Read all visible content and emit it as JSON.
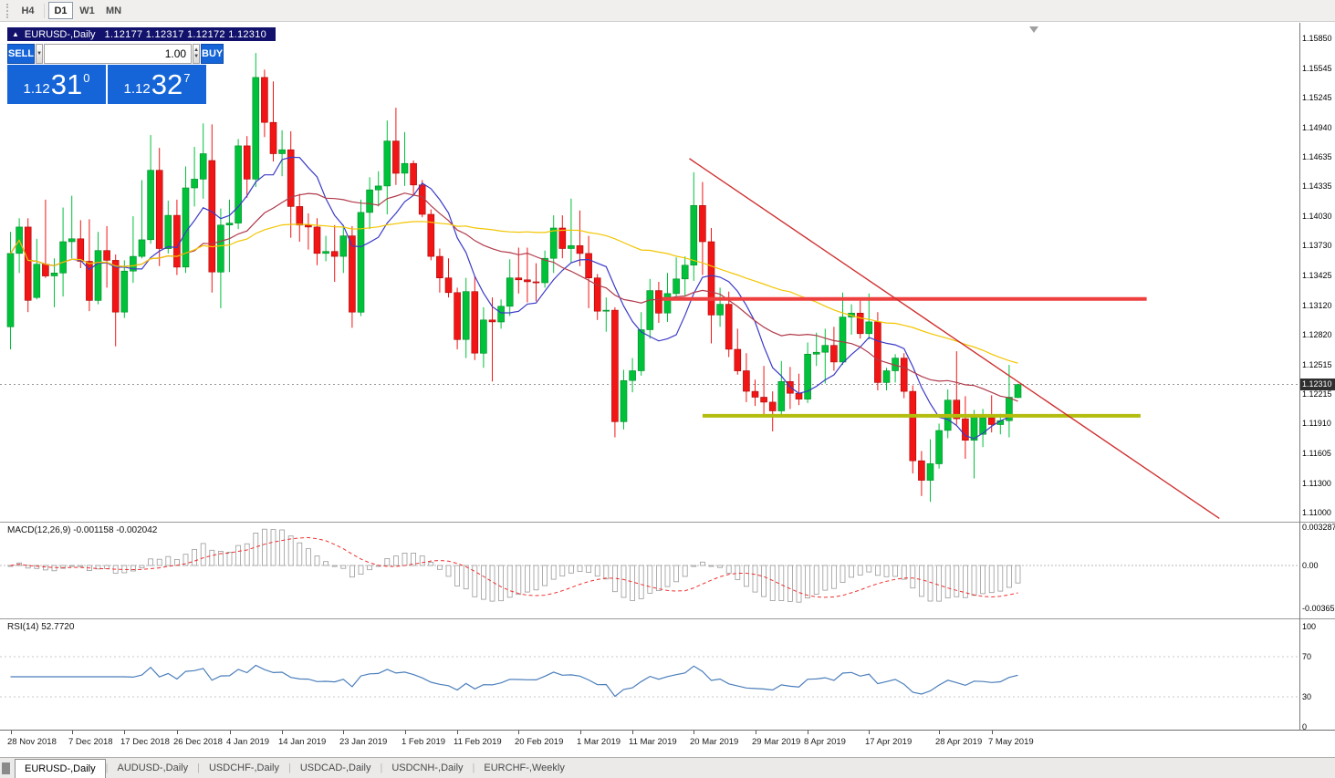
{
  "toolbar": {
    "timeframes": [
      {
        "label": "H4",
        "active": false
      },
      {
        "label": "D1",
        "active": true
      },
      {
        "label": "W1",
        "active": false
      },
      {
        "label": "MN",
        "active": false
      }
    ]
  },
  "chart": {
    "symbol_bar": {
      "collapse_icon": "▲",
      "title": "EURUSD-,Daily",
      "ohlc": "1.12177 1.12317 1.12172 1.12310"
    },
    "trade_panel": {
      "sell_label": "SELL",
      "buy_label": "BUY",
      "volume": "1.00",
      "dropdown_icon": "▼",
      "spin_up_icon": "▲",
      "spin_down_icon": "▼",
      "bid": {
        "prefix": "1.12",
        "big": "31",
        "sup": "0"
      },
      "ask": {
        "prefix": "1.12",
        "big": "32",
        "sup": "7"
      }
    },
    "price_scale": [
      "1.15850",
      "1.15545",
      "1.15245",
      "1.14940",
      "1.14635",
      "1.14335",
      "1.14030",
      "1.13730",
      "1.13425",
      "1.13120",
      "1.12820",
      "1.12515",
      "1.12215",
      "1.11910",
      "1.11605",
      "1.11300",
      "1.11000"
    ],
    "current_price": "1.12310"
  },
  "macd": {
    "label": "MACD(12,26,9) -0.001158 -0.002042",
    "scale": [
      {
        "label": "0.003287",
        "value": 0.003287
      },
      {
        "label": "0.00",
        "value": 0
      },
      {
        "label": "-0.003659",
        "value": -0.003659
      }
    ]
  },
  "rsi": {
    "label": "RSI(14) 52.7720",
    "scale": [
      {
        "label": "100",
        "value": 100
      },
      {
        "label": "70",
        "value": 70
      },
      {
        "label": "30",
        "value": 30
      },
      {
        "label": "0",
        "value": 0
      }
    ]
  },
  "time_axis": [
    {
      "label": "28 Nov 2018",
      "i": 0
    },
    {
      "label": "7 Dec 2018",
      "i": 7
    },
    {
      "label": "17 Dec 2018",
      "i": 13
    },
    {
      "label": "26 Dec 2018",
      "i": 19
    },
    {
      "label": "4 Jan 2019",
      "i": 25
    },
    {
      "label": "14 Jan 2019",
      "i": 31
    },
    {
      "label": "23 Jan 2019",
      "i": 38
    },
    {
      "label": "1 Feb 2019",
      "i": 45
    },
    {
      "label": "11 Feb 2019",
      "i": 51
    },
    {
      "label": "20 Feb 2019",
      "i": 58
    },
    {
      "label": "1 Mar 2019",
      "i": 65
    },
    {
      "label": "11 Mar 2019",
      "i": 71
    },
    {
      "label": "20 Mar 2019",
      "i": 78
    },
    {
      "label": "29 Mar 2019",
      "i": 85
    },
    {
      "label": "8 Apr 2019",
      "i": 91
    },
    {
      "label": "17 Apr 2019",
      "i": 98
    },
    {
      "label": "28 Apr 2019",
      "i": 106
    },
    {
      "label": "7 May 2019",
      "i": 112
    }
  ],
  "tabs": [
    {
      "label": "EURUSD-,Daily",
      "active": true
    },
    {
      "label": "AUDUSD-,Daily",
      "active": false
    },
    {
      "label": "USDCHF-,Daily",
      "active": false
    },
    {
      "label": "USDCAD-,Daily",
      "active": false
    },
    {
      "label": "USDCNH-,Daily",
      "active": false
    },
    {
      "label": "EURCHF-,Weekly",
      "active": false
    }
  ],
  "chart_data": {
    "type": "candlestick",
    "symbol": "EURUSD-",
    "timeframe": "Daily",
    "price_range": {
      "max": 1.1585,
      "min": 1.11
    },
    "style": {
      "up_color": "#00c23a",
      "up_border": "#008a28",
      "down_color": "#f21515",
      "down_border": "#a80808",
      "ma_fast_color": "#3a3ac8",
      "ma_mid_color": "#b03a4a",
      "ma_slow_color": "#f2c500",
      "macd_bar_stroke": "#9a9a9a",
      "macd_signal_color": "#f03030",
      "rsi_color": "#4a7ebb"
    },
    "indicators": {
      "ma_fast_period": 8,
      "ma_mid_period": 20,
      "ma_slow_period": 50,
      "macd": {
        "fast": 12,
        "slow": 26,
        "signal": 9
      },
      "rsi_period": 14
    },
    "annotations": {
      "resistance": {
        "price": 1.13185,
        "from": 74.4,
        "to": 129.7,
        "color": "#ef4040"
      },
      "support": {
        "price": 1.1199,
        "from": 79,
        "to": 129,
        "color": "#b2bd0e"
      },
      "trendline": {
        "from": {
          "i": 77.5,
          "price": 1.1462
        },
        "to": {
          "i": 138,
          "price": 1.1094
        },
        "color": "#d03030"
      },
      "current_price_line": 1.1231
    },
    "candles": [
      [
        1.129,
        1.1387,
        1.1267,
        1.1365
      ],
      [
        1.1365,
        1.1401,
        1.1345,
        1.1392
      ],
      [
        1.1392,
        1.1401,
        1.1305,
        1.1317
      ],
      [
        1.132,
        1.138,
        1.1318,
        1.1354
      ],
      [
        1.1354,
        1.142,
        1.134,
        1.1342
      ],
      [
        1.1342,
        1.136,
        1.131,
        1.1345
      ],
      [
        1.1345,
        1.1412,
        1.1321,
        1.1377
      ],
      [
        1.1377,
        1.1424,
        1.136,
        1.138
      ],
      [
        1.138,
        1.1399,
        1.135,
        1.1357
      ],
      [
        1.1357,
        1.14,
        1.1306,
        1.1317
      ],
      [
        1.1317,
        1.1387,
        1.1313,
        1.1368
      ],
      [
        1.1368,
        1.1393,
        1.133,
        1.1358
      ],
      [
        1.1358,
        1.1364,
        1.127,
        1.1305
      ],
      [
        1.1305,
        1.1358,
        1.1299,
        1.1347
      ],
      [
        1.1347,
        1.1403,
        1.1335,
        1.1362
      ],
      [
        1.1362,
        1.144,
        1.136,
        1.1379
      ],
      [
        1.1379,
        1.1486,
        1.1375,
        1.145
      ],
      [
        1.145,
        1.1473,
        1.1352,
        1.137
      ],
      [
        1.137,
        1.1419,
        1.1365,
        1.1404
      ],
      [
        1.1404,
        1.142,
        1.1343,
        1.1351
      ],
      [
        1.1351,
        1.1454,
        1.1345,
        1.1432
      ],
      [
        1.1432,
        1.1474,
        1.1413,
        1.1441
      ],
      [
        1.1441,
        1.1498,
        1.1421,
        1.1467
      ],
      [
        1.146,
        1.1497,
        1.1325,
        1.1346
      ],
      [
        1.1346,
        1.1411,
        1.1309,
        1.1394
      ],
      [
        1.1394,
        1.142,
        1.1346,
        1.1396
      ],
      [
        1.1396,
        1.1482,
        1.139,
        1.1475
      ],
      [
        1.1475,
        1.1485,
        1.1422,
        1.1441
      ],
      [
        1.1441,
        1.157,
        1.1433,
        1.1545
      ],
      [
        1.1545,
        1.1553,
        1.1484,
        1.1499
      ],
      [
        1.1499,
        1.1541,
        1.1459,
        1.1467
      ],
      [
        1.1467,
        1.1491,
        1.1444,
        1.1471
      ],
      [
        1.1471,
        1.149,
        1.1381,
        1.1413
      ],
      [
        1.1413,
        1.1426,
        1.1377,
        1.1394
      ],
      [
        1.1394,
        1.1406,
        1.1369,
        1.1392
      ],
      [
        1.1392,
        1.1401,
        1.1353,
        1.1365
      ],
      [
        1.1365,
        1.1383,
        1.1357,
        1.1367
      ],
      [
        1.1367,
        1.1394,
        1.1336,
        1.1362
      ],
      [
        1.1362,
        1.1394,
        1.1345,
        1.1383
      ],
      [
        1.1383,
        1.1393,
        1.1289,
        1.1305
      ],
      [
        1.1305,
        1.142,
        1.1301,
        1.1407
      ],
      [
        1.1407,
        1.1443,
        1.139,
        1.143
      ],
      [
        1.143,
        1.1449,
        1.1413,
        1.1434
      ],
      [
        1.1434,
        1.1501,
        1.1405,
        1.148
      ],
      [
        1.148,
        1.1514,
        1.1435,
        1.1447
      ],
      [
        1.1447,
        1.1489,
        1.1434,
        1.1457
      ],
      [
        1.1457,
        1.146,
        1.1425,
        1.1435
      ],
      [
        1.1435,
        1.144,
        1.1402,
        1.1405
      ],
      [
        1.1405,
        1.141,
        1.1358,
        1.1362
      ],
      [
        1.1362,
        1.137,
        1.1325,
        1.134
      ],
      [
        1.134,
        1.136,
        1.132,
        1.1325
      ],
      [
        1.1325,
        1.133,
        1.1267,
        1.1277
      ],
      [
        1.1277,
        1.134,
        1.1258,
        1.1326
      ],
      [
        1.1326,
        1.1342,
        1.1256,
        1.1263
      ],
      [
        1.1263,
        1.131,
        1.1248,
        1.1297
      ],
      [
        1.1297,
        1.132,
        1.1234,
        1.1295
      ],
      [
        1.1295,
        1.1318,
        1.1288,
        1.1311
      ],
      [
        1.1311,
        1.1359,
        1.1301,
        1.134
      ],
      [
        1.134,
        1.1371,
        1.1324,
        1.1338
      ],
      [
        1.1338,
        1.1371,
        1.1315,
        1.1336
      ],
      [
        1.1336,
        1.1355,
        1.1316,
        1.1335
      ],
      [
        1.1335,
        1.1368,
        1.133,
        1.136
      ],
      [
        1.136,
        1.1404,
        1.1345,
        1.1391
      ],
      [
        1.1391,
        1.1404,
        1.136,
        1.137
      ],
      [
        1.137,
        1.1421,
        1.1355,
        1.1373
      ],
      [
        1.1373,
        1.1409,
        1.1352,
        1.1365
      ],
      [
        1.1365,
        1.1383,
        1.1309,
        1.134
      ],
      [
        1.134,
        1.1344,
        1.1297,
        1.1306
      ],
      [
        1.1306,
        1.132,
        1.1285,
        1.1307
      ],
      [
        1.1307,
        1.131,
        1.1177,
        1.1193
      ],
      [
        1.1193,
        1.1246,
        1.1185,
        1.1235
      ],
      [
        1.1235,
        1.1258,
        1.1223,
        1.1245
      ],
      [
        1.1245,
        1.1305,
        1.124,
        1.1287
      ],
      [
        1.1287,
        1.1339,
        1.1278,
        1.1327
      ],
      [
        1.1327,
        1.1336,
        1.1294,
        1.1304
      ],
      [
        1.1304,
        1.1345,
        1.1295,
        1.1324
      ],
      [
        1.1324,
        1.1361,
        1.1318,
        1.1339
      ],
      [
        1.1339,
        1.1362,
        1.1322,
        1.1353
      ],
      [
        1.1353,
        1.1448,
        1.1337,
        1.1414
      ],
      [
        1.1414,
        1.1438,
        1.1343,
        1.1377
      ],
      [
        1.1377,
        1.1391,
        1.1273,
        1.1302
      ],
      [
        1.1302,
        1.133,
        1.129,
        1.1313
      ],
      [
        1.1313,
        1.1326,
        1.1259,
        1.1267
      ],
      [
        1.1267,
        1.1288,
        1.1241,
        1.1245
      ],
      [
        1.1245,
        1.1263,
        1.1213,
        1.1224
      ],
      [
        1.1224,
        1.1236,
        1.1209,
        1.1218
      ],
      [
        1.1218,
        1.125,
        1.1199,
        1.1213
      ],
      [
        1.1213,
        1.1224,
        1.1183,
        1.1204
      ],
      [
        1.1204,
        1.1255,
        1.12,
        1.1234
      ],
      [
        1.1234,
        1.1249,
        1.1206,
        1.1222
      ],
      [
        1.1222,
        1.1242,
        1.121,
        1.1216
      ],
      [
        1.1216,
        1.1274,
        1.1212,
        1.1262
      ],
      [
        1.1262,
        1.1284,
        1.125,
        1.1264
      ],
      [
        1.1264,
        1.1288,
        1.1232,
        1.1271
      ],
      [
        1.1271,
        1.129,
        1.1245,
        1.1254
      ],
      [
        1.1254,
        1.1325,
        1.1251,
        1.13
      ],
      [
        1.13,
        1.1313,
        1.1282,
        1.1304
      ],
      [
        1.1304,
        1.1317,
        1.1278,
        1.1283
      ],
      [
        1.1283,
        1.1324,
        1.1277,
        1.1295
      ],
      [
        1.1295,
        1.1305,
        1.1225,
        1.1233
      ],
      [
        1.1233,
        1.1248,
        1.1225,
        1.1245
      ],
      [
        1.1245,
        1.1262,
        1.1233,
        1.1258
      ],
      [
        1.1258,
        1.1263,
        1.1217,
        1.1224
      ],
      [
        1.1224,
        1.123,
        1.114,
        1.1153
      ],
      [
        1.1153,
        1.1163,
        1.1117,
        1.1133
      ],
      [
        1.1133,
        1.1175,
        1.1111,
        1.115
      ],
      [
        1.115,
        1.1191,
        1.1145,
        1.1184
      ],
      [
        1.1184,
        1.1226,
        1.1176,
        1.1215
      ],
      [
        1.1215,
        1.1265,
        1.119,
        1.1196
      ],
      [
        1.1196,
        1.1219,
        1.1155,
        1.1174
      ],
      [
        1.1174,
        1.1205,
        1.1135,
        1.12
      ],
      [
        1.118,
        1.1206,
        1.1167,
        1.1197
      ],
      [
        1.1197,
        1.122,
        1.1182,
        1.119
      ],
      [
        1.119,
        1.1201,
        1.118,
        1.1194
      ],
      [
        1.1194,
        1.1251,
        1.1177,
        1.1218
      ],
      [
        1.12177,
        1.12317,
        1.12172,
        1.1231
      ]
    ]
  }
}
